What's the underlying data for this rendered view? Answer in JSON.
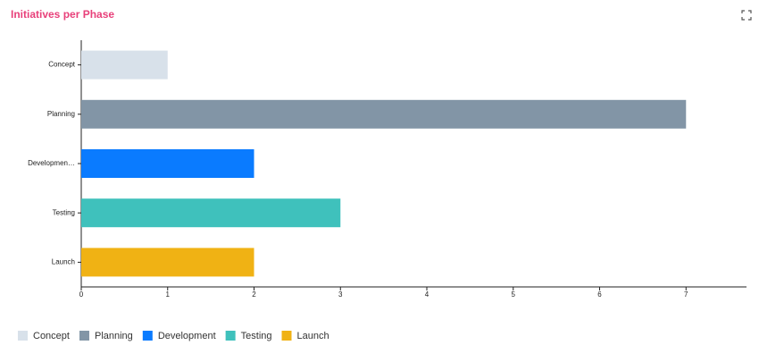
{
  "chart_data": {
    "type": "hbar",
    "title": "Initiatives per Phase",
    "categories": [
      "Concept",
      "Planning",
      "Developmen…",
      "Testing",
      "Launch"
    ],
    "values": [
      1,
      7,
      2,
      3,
      2
    ],
    "colors": [
      "#d8e1ea",
      "#8295a6",
      "#0a7bff",
      "#3fc1bc",
      "#f0b214"
    ],
    "legend": [
      "Concept",
      "Planning",
      "Development",
      "Testing",
      "Launch"
    ],
    "xlim": [
      0,
      7.7
    ],
    "xticks": [
      0,
      1,
      2,
      3,
      4,
      5,
      6,
      7
    ],
    "grid": false
  }
}
